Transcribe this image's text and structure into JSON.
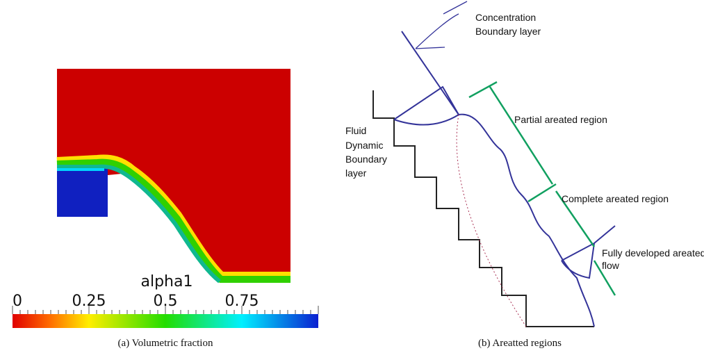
{
  "panel_a": {
    "colorbar": {
      "title": "alpha1",
      "ticks": [
        0,
        0.25,
        0.5,
        0.75
      ]
    },
    "caption": "(a)  Volumetric fraction"
  },
  "panel_b": {
    "labels": {
      "concentration": [
        "Concentration",
        "Boundary layer"
      ],
      "fluid": [
        "Fluid",
        "Dynamic",
        "Boundary",
        "layer"
      ],
      "partial": "Partial areated region",
      "complete": "Complete areated region",
      "fully": [
        "Fully developed areated",
        "flow"
      ]
    },
    "caption": "(b)  Areatted regions"
  }
}
